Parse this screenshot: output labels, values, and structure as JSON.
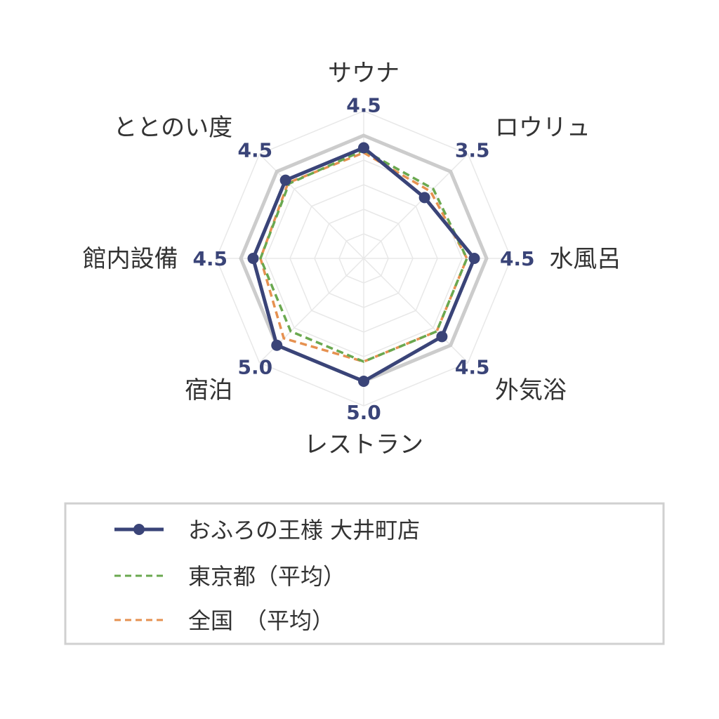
{
  "colors": {
    "primary": "#3a4478",
    "tokyo": "#6aa84f",
    "national": "#e69150",
    "max_ring": "#cccccc",
    "grid": "#e8e8e8",
    "legend_border": "#d0d0d0"
  },
  "chart_data": {
    "type": "radar",
    "axes": [
      "サウナ",
      "ロウリュ",
      "水風呂",
      "外気浴",
      "レストラン",
      "宿泊",
      "館内設備",
      "ととのい度"
    ],
    "range": [
      0,
      5
    ],
    "series": [
      {
        "name": "おふろの王様 大井町店",
        "values": [
          4.5,
          3.5,
          4.5,
          4.5,
          5.0,
          5.0,
          4.5,
          4.5
        ],
        "style": "solid-markers"
      },
      {
        "name": "東京都（平均）",
        "values": [
          4.4,
          4.0,
          4.2,
          4.2,
          4.2,
          4.2,
          4.2,
          4.3
        ],
        "style": "dashed"
      },
      {
        "name": "全国　（平均）",
        "values": [
          4.3,
          3.85,
          4.2,
          4.2,
          4.2,
          4.6,
          4.2,
          4.35
        ],
        "style": "dashed"
      }
    ],
    "value_labels": [
      "4.5",
      "3.5",
      "4.5",
      "4.5",
      "5.0",
      "5.0",
      "4.5",
      "4.5"
    ],
    "legend": {
      "placement": "bottom",
      "entries": [
        "おふろの王様 大井町店",
        "東京都（平均）",
        "全国　（平均）"
      ]
    },
    "grid": true
  }
}
